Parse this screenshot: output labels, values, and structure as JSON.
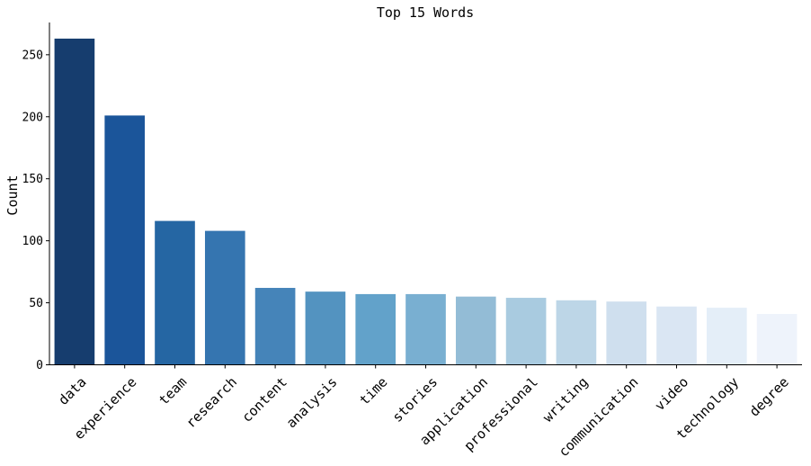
{
  "chart_data": {
    "type": "bar",
    "title": "Top 15 Words",
    "xlabel": "",
    "ylabel": "Count",
    "categories": [
      "data",
      "experience",
      "team",
      "research",
      "content",
      "analysis",
      "time",
      "stories",
      "application",
      "professional",
      "writing",
      "communication",
      "video",
      "technology",
      "degree"
    ],
    "values": [
      263,
      201,
      116,
      108,
      62,
      59,
      57,
      57,
      55,
      54,
      52,
      51,
      47,
      46,
      41
    ],
    "colors": [
      "#163d6e",
      "#1b559a",
      "#2566a3",
      "#3575b0",
      "#4584b9",
      "#5393c0",
      "#62a2ca",
      "#79afd1",
      "#93bcd6",
      "#a9cbe0",
      "#bdd6e7",
      "#cfdfee",
      "#dae6f3",
      "#e4eef8",
      "#eef3fb"
    ],
    "yticks": [
      0,
      50,
      100,
      150,
      200,
      250
    ],
    "ylim": [
      0,
      276
    ],
    "grid": false,
    "legend": "none"
  }
}
